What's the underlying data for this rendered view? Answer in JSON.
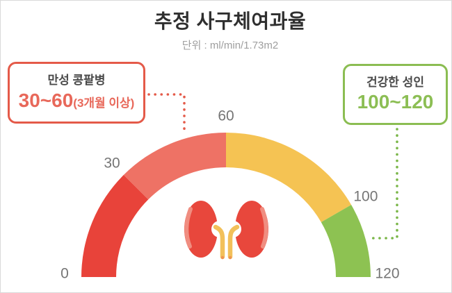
{
  "page": {
    "background": "#ffffff",
    "border_color": "#d9d9d9"
  },
  "header": {
    "title": "추정 사구체여과율",
    "unit_label": "단위 : ml/min/1.73m2"
  },
  "callouts": {
    "left": {
      "title": "만성 콩팥병",
      "value": "30~60",
      "value_suffix": "(3개월 이상)",
      "border_color": "#e45a49",
      "value_color": "#e8685a",
      "title_color": "#4a4a4a"
    },
    "right": {
      "title": "건강한 성인",
      "value": "100~120",
      "border_color": "#8bbd52",
      "value_color": "#8cbe54",
      "title_color": "#4a4a4a"
    }
  },
  "connectors": {
    "left": {
      "color": "#e45a49"
    },
    "right": {
      "color": "#7ab648"
    }
  },
  "icons": {
    "kidney": {
      "body_color": "#e8473c",
      "highlight_color": "#f08d80",
      "ureter_color": "#f2c05a",
      "tip_color": "#ef9350"
    }
  },
  "chart_data": {
    "type": "gauge",
    "title": "추정 사구체여과율",
    "unit": "ml/min/1.73m2",
    "min": 0,
    "max": 120,
    "start_angle_deg": 180,
    "end_angle_deg": 0,
    "segments": [
      {
        "from": 0,
        "to": 30,
        "color": "#e8433a"
      },
      {
        "from": 30,
        "to": 60,
        "color": "#ee7265"
      },
      {
        "from": 60,
        "to": 100,
        "color": "#f5c353"
      },
      {
        "from": 100,
        "to": 120,
        "color": "#8dc252"
      }
    ],
    "tick_labels": [
      0,
      30,
      60,
      100,
      120
    ],
    "tick_label_color": "#757575",
    "annotations": [
      {
        "range": "30~60",
        "label": "만성 콩팥병 (3개월 이상)"
      },
      {
        "range": "100~120",
        "label": "건강한 성인"
      }
    ]
  }
}
